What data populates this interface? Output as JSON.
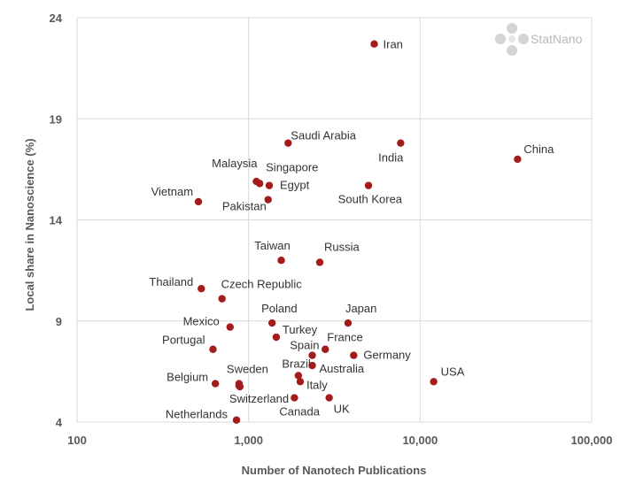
{
  "logo": {
    "text": "StatNano"
  },
  "colors": {
    "point": "#a31b1b",
    "grid": "#d9d9d9",
    "axis_text": "#595959",
    "label_text": "#333333"
  },
  "chart_data": {
    "type": "scatter",
    "title": "",
    "xlabel": "Number of Nanotech Publications",
    "ylabel": "Local share in Nanoscience (%)",
    "x_scale": "log",
    "xlim": [
      100,
      100000
    ],
    "ylim": [
      4,
      24
    ],
    "x_ticks": [
      100,
      1000,
      10000,
      100000
    ],
    "x_tick_labels": [
      "100",
      "1,000",
      "10,000",
      "100,000"
    ],
    "y_ticks": [
      4,
      9,
      14,
      19,
      24
    ],
    "y_tick_labels": [
      "4",
      "9",
      "14",
      "19",
      "24"
    ],
    "grid": true,
    "legend": "none",
    "points": [
      {
        "label": "Iran",
        "x": 5400,
        "y": 22.7,
        "anchor": "start",
        "dx": 10,
        "dy": 5
      },
      {
        "label": "Saudi Arabia",
        "x": 1700,
        "y": 17.8,
        "anchor": "start",
        "dx": 3,
        "dy": -4
      },
      {
        "label": "India",
        "x": 7700,
        "y": 17.8,
        "anchor": "end",
        "dx": 3,
        "dy": 21
      },
      {
        "label": "China",
        "x": 37000,
        "y": 17.0,
        "anchor": "start",
        "dx": 7,
        "dy": -7
      },
      {
        "label": "Malaysia",
        "x": 1110,
        "y": 15.9,
        "anchor": "end",
        "dx": 1,
        "dy": -16
      },
      {
        "label": "Singapore",
        "x": 1160,
        "y": 15.8,
        "anchor": "start",
        "dx": 7,
        "dy": -14
      },
      {
        "label": "Egypt",
        "x": 1320,
        "y": 15.7,
        "anchor": "start",
        "dx": 12,
        "dy": 4
      },
      {
        "label": "South Korea",
        "x": 5000,
        "y": 15.7,
        "anchor": "end",
        "dx": 38,
        "dy": 20
      },
      {
        "label": "Vietnam",
        "x": 510,
        "y": 14.9,
        "anchor": "end",
        "dx": -6,
        "dy": -7
      },
      {
        "label": "Pakistan",
        "x": 1300,
        "y": 15.0,
        "anchor": "end",
        "dx": -2,
        "dy": 12
      },
      {
        "label": "Taiwan",
        "x": 1550,
        "y": 12.0,
        "anchor": "middle",
        "dx": -10,
        "dy": -12
      },
      {
        "label": "Russia",
        "x": 2600,
        "y": 11.9,
        "anchor": "start",
        "dx": 5,
        "dy": -13
      },
      {
        "label": "Thailand",
        "x": 530,
        "y": 10.6,
        "anchor": "end",
        "dx": -9,
        "dy": -3
      },
      {
        "label": "Czech Republic",
        "x": 700,
        "y": 10.1,
        "anchor": "start",
        "dx": -1,
        "dy": -12
      },
      {
        "label": "Poland",
        "x": 1370,
        "y": 8.9,
        "anchor": "start",
        "dx": -12,
        "dy": -12
      },
      {
        "label": "Japan",
        "x": 3800,
        "y": 8.9,
        "anchor": "start",
        "dx": -3,
        "dy": -12
      },
      {
        "label": "Mexico",
        "x": 780,
        "y": 8.7,
        "anchor": "end",
        "dx": -12,
        "dy": -2
      },
      {
        "label": "Turkey",
        "x": 1450,
        "y": 8.2,
        "anchor": "start",
        "dx": 7,
        "dy": -4
      },
      {
        "label": "France",
        "x": 2800,
        "y": 7.6,
        "anchor": "start",
        "dx": 2,
        "dy": -9
      },
      {
        "label": "Portugal",
        "x": 620,
        "y": 7.6,
        "anchor": "end",
        "dx": -9,
        "dy": -6
      },
      {
        "label": "Spain",
        "x": 2350,
        "y": 7.3,
        "anchor": "end",
        "dx": 8,
        "dy": -7
      },
      {
        "label": "Germany",
        "x": 4100,
        "y": 7.3,
        "anchor": "start",
        "dx": 11,
        "dy": 4
      },
      {
        "label": "Australia",
        "x": 2350,
        "y": 6.8,
        "anchor": "start",
        "dx": 8,
        "dy": 8
      },
      {
        "label": "Sweden",
        "x": 880,
        "y": 5.9,
        "anchor": "start",
        "dx": -14,
        "dy": -12
      },
      {
        "label": "Brazil",
        "x": 1950,
        "y": 6.3,
        "anchor": "end",
        "dx": 14,
        "dy": -9
      },
      {
        "label": "Belgium",
        "x": 640,
        "y": 5.9,
        "anchor": "end",
        "dx": -8,
        "dy": -3
      },
      {
        "label": "USA",
        "x": 12000,
        "y": 6.0,
        "anchor": "start",
        "dx": 8,
        "dy": -7
      },
      {
        "label": "Italy",
        "x": 2000,
        "y": 6.0,
        "anchor": "start",
        "dx": 7,
        "dy": 8
      },
      {
        "label": "Switzerland",
        "x": 880,
        "y": 5.8,
        "anchor": "start",
        "dx": -11,
        "dy": 19
      },
      {
        "label": "Switzerland-point2",
        "x": 890,
        "y": 5.75,
        "hidden_label": true
      },
      {
        "label": "UK",
        "x": 2950,
        "y": 5.2,
        "anchor": "start",
        "dx": 5,
        "dy": 17
      },
      {
        "label": "Canada",
        "x": 1850,
        "y": 5.2,
        "anchor": "start",
        "dx": -17,
        "dy": 20
      },
      {
        "label": "Netherlands",
        "x": 850,
        "y": 4.1,
        "anchor": "end",
        "dx": -10,
        "dy": -2
      }
    ]
  }
}
